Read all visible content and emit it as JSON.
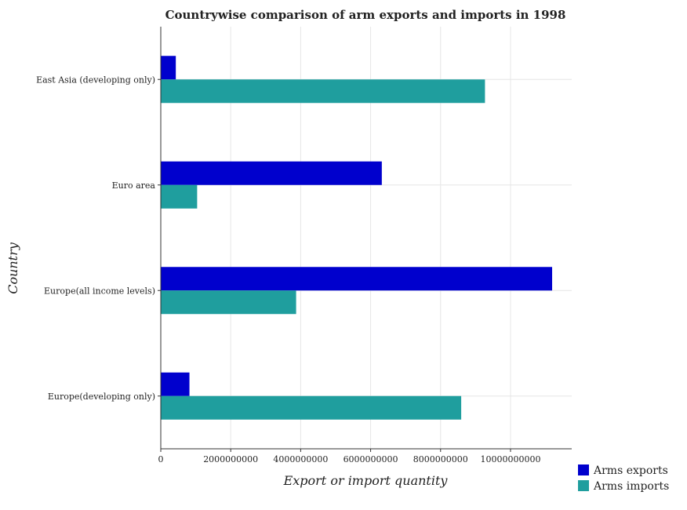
{
  "chart_data": {
    "type": "bar",
    "orientation": "horizontal",
    "title": "Countrywise comparison of arm exports and imports in 1998",
    "xlabel": "Export or import quantity",
    "ylabel": "Country",
    "categories": [
      "East Asia (developing only)",
      "Euro area",
      "Europe(all income levels)",
      "Europe(developing only)"
    ],
    "series": [
      {
        "name": "Arms exports",
        "color": "#0000cd",
        "values": [
          430000000,
          6320000000,
          11190000000,
          820000000
        ]
      },
      {
        "name": "Arms imports",
        "color": "#1f9e9e",
        "values": [
          9270000000,
          1040000000,
          3870000000,
          8590000000
        ]
      }
    ],
    "xlim": [
      0,
      11750000000
    ],
    "xticks": [
      0,
      2000000000,
      4000000000,
      6000000000,
      8000000000,
      10000000000
    ],
    "xtick_labels": [
      "0",
      "2000000000",
      "4000000000",
      "6000000000",
      "8000000000",
      "10000000000"
    ],
    "grid": true,
    "legend_position": "bottom-right"
  }
}
